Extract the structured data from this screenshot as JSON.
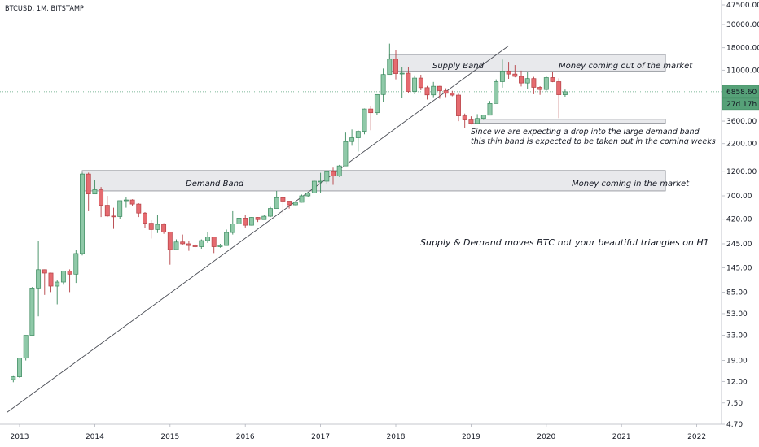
{
  "header": {
    "symbol_line": "BTCUSD, 1M, BITSTAMP"
  },
  "colors": {
    "up": "#8fc9a8",
    "up_border": "#3b8a5e",
    "down": "#e56b70",
    "down_border": "#b54045",
    "band_fill": "#e8e9ec",
    "band_stroke": "#8a8d94",
    "last_price_bg": "#56a178",
    "countdown_bg": "#56a178"
  },
  "chart_data": {
    "type": "candlestick",
    "scale": "log",
    "y_ticks": [
      "47500.00",
      "30000.00",
      "18000.00",
      "11000.00",
      "6858.60",
      "3600.00",
      "2200.00",
      "1200.00",
      "700.00",
      "420.00",
      "245.00",
      "145.00",
      "85.00",
      "53.00",
      "33.00",
      "19.00",
      "12.00",
      "7.50",
      "4.70"
    ],
    "y_tick_values": [
      47500,
      30000,
      18000,
      11000,
      6858.6,
      3600,
      2200,
      1200,
      700,
      420,
      245,
      145,
      85,
      53,
      33,
      19,
      12,
      7.5,
      4.7
    ],
    "x_ticks": [
      "2013",
      "2014",
      "2015",
      "2016",
      "2017",
      "2018",
      "2019",
      "2020",
      "2021",
      "2022"
    ],
    "x_tick_dates": [
      "2013-01",
      "2014-01",
      "2015-01",
      "2016-01",
      "2017-01",
      "2018-01",
      "2019-01",
      "2020-01",
      "2021-01",
      "2022-01"
    ],
    "last_price": "6858.60",
    "countdown": "27d 17h",
    "candles": [
      {
        "t": "2012-12",
        "o": 12.5,
        "h": 13.5,
        "l": 11.8,
        "c": 13.3
      },
      {
        "t": "2013-01",
        "o": 13.3,
        "h": 20,
        "l": 13,
        "c": 20
      },
      {
        "t": "2013-02",
        "o": 20,
        "h": 33,
        "l": 19,
        "c": 33
      },
      {
        "t": "2013-03",
        "o": 33,
        "h": 95,
        "l": 33,
        "c": 93
      },
      {
        "t": "2013-04",
        "o": 93,
        "h": 260,
        "l": 50,
        "c": 139
      },
      {
        "t": "2013-05",
        "o": 139,
        "h": 140,
        "l": 80,
        "c": 129
      },
      {
        "t": "2013-06",
        "o": 129,
        "h": 130,
        "l": 85,
        "c": 97
      },
      {
        "t": "2013-07",
        "o": 97,
        "h": 110,
        "l": 65,
        "c": 106
      },
      {
        "t": "2013-08",
        "o": 106,
        "h": 135,
        "l": 100,
        "c": 135
      },
      {
        "t": "2013-09",
        "o": 135,
        "h": 140,
        "l": 85,
        "c": 126
      },
      {
        "t": "2013-10",
        "o": 126,
        "h": 215,
        "l": 104,
        "c": 198
      },
      {
        "t": "2013-11",
        "o": 198,
        "h": 1163,
        "l": 190,
        "c": 1130
      },
      {
        "t": "2013-12",
        "o": 1130,
        "h": 1165,
        "l": 500,
        "c": 730
      },
      {
        "t": "2014-01",
        "o": 730,
        "h": 1000,
        "l": 730,
        "c": 800
      },
      {
        "t": "2014-02",
        "o": 800,
        "h": 850,
        "l": 440,
        "c": 570
      },
      {
        "t": "2014-03",
        "o": 570,
        "h": 700,
        "l": 440,
        "c": 450
      },
      {
        "t": "2014-04",
        "o": 450,
        "h": 540,
        "l": 340,
        "c": 445
      },
      {
        "t": "2014-05",
        "o": 445,
        "h": 630,
        "l": 420,
        "c": 630
      },
      {
        "t": "2014-06",
        "o": 630,
        "h": 680,
        "l": 540,
        "c": 640
      },
      {
        "t": "2014-07",
        "o": 640,
        "h": 650,
        "l": 560,
        "c": 585
      },
      {
        "t": "2014-08",
        "o": 585,
        "h": 595,
        "l": 440,
        "c": 480
      },
      {
        "t": "2014-09",
        "o": 480,
        "h": 490,
        "l": 350,
        "c": 385
      },
      {
        "t": "2014-10",
        "o": 385,
        "h": 410,
        "l": 275,
        "c": 335
      },
      {
        "t": "2014-11",
        "o": 335,
        "h": 460,
        "l": 310,
        "c": 375
      },
      {
        "t": "2014-12",
        "o": 375,
        "h": 385,
        "l": 305,
        "c": 318
      },
      {
        "t": "2015-01",
        "o": 318,
        "h": 320,
        "l": 155,
        "c": 216
      },
      {
        "t": "2015-02",
        "o": 216,
        "h": 270,
        "l": 215,
        "c": 255
      },
      {
        "t": "2015-03",
        "o": 255,
        "h": 300,
        "l": 240,
        "c": 245
      },
      {
        "t": "2015-04",
        "o": 245,
        "h": 260,
        "l": 210,
        "c": 236
      },
      {
        "t": "2015-05",
        "o": 236,
        "h": 245,
        "l": 225,
        "c": 230
      },
      {
        "t": "2015-06",
        "o": 230,
        "h": 270,
        "l": 220,
        "c": 263
      },
      {
        "t": "2015-07",
        "o": 263,
        "h": 315,
        "l": 250,
        "c": 284
      },
      {
        "t": "2015-08",
        "o": 284,
        "h": 285,
        "l": 200,
        "c": 230
      },
      {
        "t": "2015-09",
        "o": 230,
        "h": 245,
        "l": 225,
        "c": 236
      },
      {
        "t": "2015-10",
        "o": 236,
        "h": 335,
        "l": 235,
        "c": 314
      },
      {
        "t": "2015-11",
        "o": 314,
        "h": 500,
        "l": 300,
        "c": 378
      },
      {
        "t": "2015-12",
        "o": 378,
        "h": 470,
        "l": 350,
        "c": 430
      },
      {
        "t": "2016-01",
        "o": 430,
        "h": 460,
        "l": 350,
        "c": 368
      },
      {
        "t": "2016-02",
        "o": 368,
        "h": 440,
        "l": 365,
        "c": 437
      },
      {
        "t": "2016-03",
        "o": 437,
        "h": 440,
        "l": 395,
        "c": 416
      },
      {
        "t": "2016-04",
        "o": 416,
        "h": 465,
        "l": 415,
        "c": 448
      },
      {
        "t": "2016-05",
        "o": 448,
        "h": 550,
        "l": 440,
        "c": 531
      },
      {
        "t": "2016-06",
        "o": 531,
        "h": 780,
        "l": 530,
        "c": 673
      },
      {
        "t": "2016-07",
        "o": 673,
        "h": 690,
        "l": 470,
        "c": 624
      },
      {
        "t": "2016-08",
        "o": 624,
        "h": 625,
        "l": 530,
        "c": 575
      },
      {
        "t": "2016-09",
        "o": 575,
        "h": 615,
        "l": 570,
        "c": 608
      },
      {
        "t": "2016-10",
        "o": 608,
        "h": 720,
        "l": 605,
        "c": 700
      },
      {
        "t": "2016-11",
        "o": 700,
        "h": 760,
        "l": 680,
        "c": 745
      },
      {
        "t": "2016-12",
        "o": 745,
        "h": 975,
        "l": 740,
        "c": 965
      },
      {
        "t": "2017-01",
        "o": 965,
        "h": 1160,
        "l": 750,
        "c": 965
      },
      {
        "t": "2017-02",
        "o": 965,
        "h": 1200,
        "l": 915,
        "c": 1190
      },
      {
        "t": "2017-03",
        "o": 1190,
        "h": 1300,
        "l": 890,
        "c": 1080
      },
      {
        "t": "2017-04",
        "o": 1080,
        "h": 1380,
        "l": 1060,
        "c": 1350
      },
      {
        "t": "2017-05",
        "o": 1350,
        "h": 2800,
        "l": 1350,
        "c": 2300
      },
      {
        "t": "2017-06",
        "o": 2300,
        "h": 3000,
        "l": 2100,
        "c": 2500
      },
      {
        "t": "2017-07",
        "o": 2500,
        "h": 2950,
        "l": 1850,
        "c": 2880
      },
      {
        "t": "2017-08",
        "o": 2880,
        "h": 4750,
        "l": 2700,
        "c": 4700
      },
      {
        "t": "2017-09",
        "o": 4700,
        "h": 5000,
        "l": 2950,
        "c": 4330
      },
      {
        "t": "2017-10",
        "o": 4330,
        "h": 6450,
        "l": 4100,
        "c": 6450
      },
      {
        "t": "2017-11",
        "o": 6450,
        "h": 11400,
        "l": 5500,
        "c": 10000
      },
      {
        "t": "2017-12",
        "o": 10000,
        "h": 19700,
        "l": 10000,
        "c": 14000
      },
      {
        "t": "2018-01",
        "o": 14000,
        "h": 17200,
        "l": 9000,
        "c": 10200
      },
      {
        "t": "2018-02",
        "o": 10200,
        "h": 11800,
        "l": 6000,
        "c": 10300
      },
      {
        "t": "2018-03",
        "o": 10300,
        "h": 11700,
        "l": 6600,
        "c": 6900
      },
      {
        "t": "2018-04",
        "o": 6900,
        "h": 9800,
        "l": 6500,
        "c": 9250
      },
      {
        "t": "2018-05",
        "o": 9250,
        "h": 9950,
        "l": 7100,
        "c": 7500
      },
      {
        "t": "2018-06",
        "o": 7500,
        "h": 7780,
        "l": 5780,
        "c": 6400
      },
      {
        "t": "2018-07",
        "o": 6400,
        "h": 8500,
        "l": 6080,
        "c": 7730
      },
      {
        "t": "2018-08",
        "o": 7730,
        "h": 7800,
        "l": 5880,
        "c": 7020
      },
      {
        "t": "2018-09",
        "o": 7020,
        "h": 7400,
        "l": 6100,
        "c": 6630
      },
      {
        "t": "2018-10",
        "o": 6630,
        "h": 7000,
        "l": 6200,
        "c": 6370
      },
      {
        "t": "2018-11",
        "o": 6370,
        "h": 6580,
        "l": 3600,
        "c": 4040
      },
      {
        "t": "2018-12",
        "o": 4040,
        "h": 4250,
        "l": 3120,
        "c": 3700
      },
      {
        "t": "2019-01",
        "o": 3700,
        "h": 4000,
        "l": 3350,
        "c": 3430
      },
      {
        "t": "2019-02",
        "o": 3430,
        "h": 4200,
        "l": 3370,
        "c": 3820
      },
      {
        "t": "2019-03",
        "o": 3820,
        "h": 4100,
        "l": 3700,
        "c": 4100
      },
      {
        "t": "2019-04",
        "o": 4100,
        "h": 5600,
        "l": 4100,
        "c": 5300
      },
      {
        "t": "2019-05",
        "o": 5300,
        "h": 9000,
        "l": 5300,
        "c": 8550
      },
      {
        "t": "2019-06",
        "o": 8550,
        "h": 13880,
        "l": 7500,
        "c": 10800
      },
      {
        "t": "2019-07",
        "o": 10800,
        "h": 13200,
        "l": 9100,
        "c": 10100
      },
      {
        "t": "2019-08",
        "o": 10100,
        "h": 12300,
        "l": 9400,
        "c": 9600
      },
      {
        "t": "2019-09",
        "o": 9600,
        "h": 10900,
        "l": 7700,
        "c": 8300
      },
      {
        "t": "2019-10",
        "o": 8300,
        "h": 10500,
        "l": 7300,
        "c": 9150
      },
      {
        "t": "2019-11",
        "o": 9150,
        "h": 9500,
        "l": 6500,
        "c": 7550
      },
      {
        "t": "2019-12",
        "o": 7550,
        "h": 7750,
        "l": 6400,
        "c": 7200
      },
      {
        "t": "2020-01",
        "o": 7200,
        "h": 9600,
        "l": 6850,
        "c": 9350
      },
      {
        "t": "2020-02",
        "o": 9350,
        "h": 10500,
        "l": 8450,
        "c": 8550
      },
      {
        "t": "2020-03",
        "o": 8550,
        "h": 9200,
        "l": 3850,
        "c": 6420
      },
      {
        "t": "2020-04",
        "o": 6420,
        "h": 7200,
        "l": 6150,
        "c": 6858.6
      }
    ],
    "trendline": {
      "from": {
        "t": "2012-11",
        "v": 6.1
      },
      "to": {
        "t": "2019-07",
        "v": 18800
      }
    },
    "zones": [
      {
        "name": "supply-band",
        "t_from": "2017-12",
        "t_to": "2021-08",
        "low": 10800,
        "high": 15500
      },
      {
        "name": "demand-band",
        "t_from": "2013-11",
        "t_to": "2021-08",
        "low": 780,
        "high": 1220
      },
      {
        "name": "thin-band",
        "t_from": "2019-01",
        "t_to": "2021-08",
        "low": 3450,
        "high": 3750
      }
    ],
    "annotations": {
      "supply_left": "Supply Band",
      "supply_right": "Money coming out of the market",
      "demand_left": "Demand Band",
      "demand_right": "Money coming in the market",
      "note_line1": "Since we are expecting a drop into the large demand band",
      "note_line2": "this thin band is expected to be taken out in the coming weeks",
      "main_text": "Supply & Demand moves BTC not your beautiful triangles on H1"
    }
  }
}
